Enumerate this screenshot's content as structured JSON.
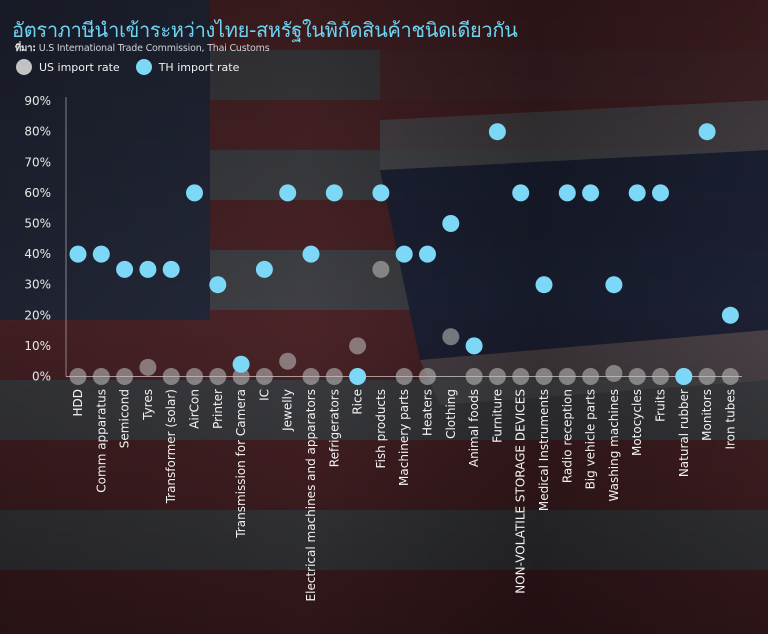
{
  "title": "อัตราภาษีนำเข้าระหว่างไทย-สหรัฐในพิกัดสินค้าชนิดเดียวกัน",
  "source": {
    "label": "ที่มา:",
    "text": "U.S International Trade Commission, Thai Customs"
  },
  "colors": {
    "us": "#c2c2c2",
    "th": "#7dd8f7",
    "title": "#6fd3f2"
  },
  "chart_data": {
    "type": "scatter",
    "categories": [
      "HDD",
      "Comm apparatus",
      "Semicond",
      "Tyres",
      "Transformer (solar)",
      "AirCon",
      "Printer",
      "Transmission for Camera",
      "IC",
      "Jewelly",
      "Electrical machines and apparators",
      "Refrigerators",
      "Rice",
      "Fish products",
      "Machinery parts",
      "Heaters",
      "Clothing",
      "Animal foods",
      "Furniture",
      "NON-VOLATILE STORAGE DEVICES",
      "Medical Instruments",
      "Radio reception",
      "Big vehicle parts",
      "Washing machines",
      "Motocycles",
      "Fruits",
      "Natural rubber",
      "Monitors",
      "Iron tubes"
    ],
    "series": [
      {
        "name": "US import rate",
        "values": [
          0,
          0,
          0,
          3,
          0,
          0,
          0,
          0,
          0,
          5,
          0,
          0,
          10,
          35,
          0,
          0,
          13,
          0,
          0,
          0,
          0,
          0,
          0,
          1,
          0,
          0,
          0,
          0,
          0
        ]
      },
      {
        "name": "TH import rate",
        "values": [
          40,
          40,
          35,
          35,
          35,
          60,
          30,
          4,
          35,
          60,
          40,
          60,
          0,
          60,
          40,
          40,
          50,
          10,
          80,
          60,
          30,
          60,
          60,
          30,
          60,
          60,
          0,
          80,
          20
        ]
      }
    ],
    "yticks": [
      "0%",
      "10%",
      "20%",
      "30%",
      "40%",
      "50%",
      "60%",
      "70%",
      "80%",
      "90%"
    ],
    "ylim": [
      0,
      90
    ],
    "grid": false,
    "legend_position": "top-left"
  }
}
